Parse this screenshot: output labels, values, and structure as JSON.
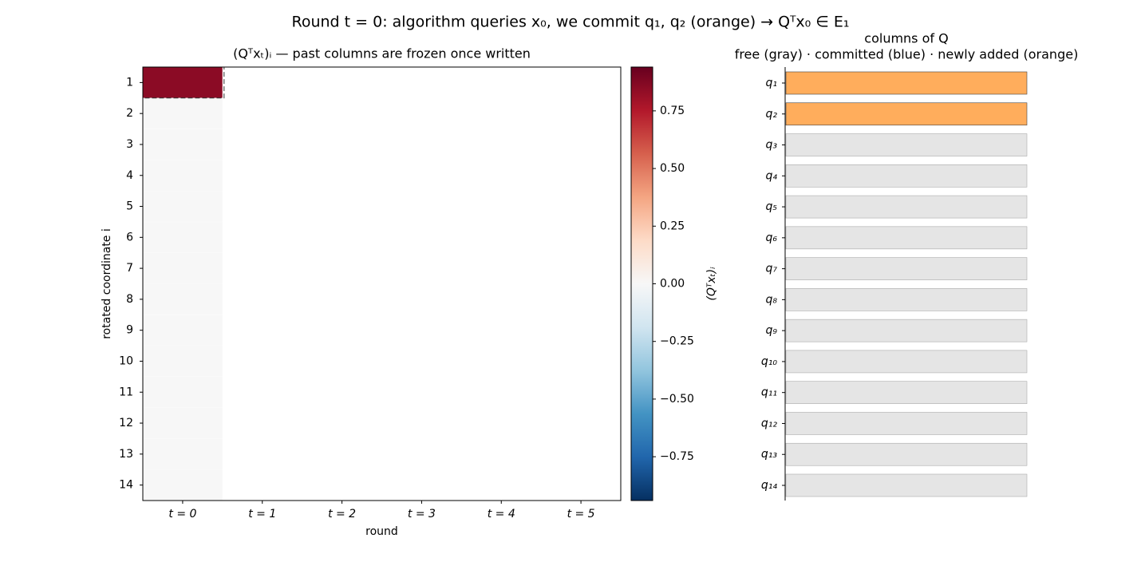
{
  "suptitle": "Round t = 0: algorithm queries x₀, we commit q₁, q₂ (orange) → Qᵀx₀ ∈ E₁",
  "chart_data": [
    {
      "type": "heatmap",
      "title": "(Qᵀxₜ)ᵢ  —  past columns are frozen once written",
      "xlabel": "round",
      "ylabel": "rotated coordinate i",
      "columns": [
        "t = 0",
        "t = 1",
        "t = 2",
        "t = 3",
        "t = 4",
        "t = 5"
      ],
      "rows": [
        1,
        2,
        3,
        4,
        5,
        6,
        7,
        8,
        9,
        10,
        11,
        12,
        13,
        14
      ],
      "values": [
        [
          0.85,
          null,
          null,
          null,
          null,
          null
        ],
        [
          0,
          null,
          null,
          null,
          null,
          null
        ],
        [
          0,
          null,
          null,
          null,
          null,
          null
        ],
        [
          0,
          null,
          null,
          null,
          null,
          null
        ],
        [
          0,
          null,
          null,
          null,
          null,
          null
        ],
        [
          0,
          null,
          null,
          null,
          null,
          null
        ],
        [
          0,
          null,
          null,
          null,
          null,
          null
        ],
        [
          0,
          null,
          null,
          null,
          null,
          null
        ],
        [
          0,
          null,
          null,
          null,
          null,
          null
        ],
        [
          0,
          null,
          null,
          null,
          null,
          null
        ],
        [
          0,
          null,
          null,
          null,
          null,
          null
        ],
        [
          0,
          null,
          null,
          null,
          null,
          null
        ],
        [
          0,
          null,
          null,
          null,
          null,
          null
        ],
        [
          0,
          null,
          null,
          null,
          null,
          null
        ]
      ],
      "colormap": "RdBu_r",
      "clim": [
        -0.94,
        0.94
      ],
      "cticks": [
        {
          "value": -0.75,
          "label": "−0.75"
        },
        {
          "value": -0.5,
          "label": "−0.50"
        },
        {
          "value": -0.25,
          "label": "−0.25"
        },
        {
          "value": 0,
          "label": "0.00"
        },
        {
          "value": 0.25,
          "label": "0.25"
        },
        {
          "value": 0.5,
          "label": "0.50"
        },
        {
          "value": 0.75,
          "label": "0.75"
        }
      ],
      "clabel": "(Qᵀxₜ)ᵢ"
    },
    {
      "type": "status-bars",
      "title": "columns of Q",
      "subtitle": "free (gray) · committed (blue) · newly added (orange)",
      "categories": [
        "q₁",
        "q₂",
        "q₃",
        "q₄",
        "q₅",
        "q₆",
        "q₇",
        "q₈",
        "q₉",
        "q₁₀",
        "q₁₁",
        "q₁₂",
        "q₁₃",
        "q₁₄"
      ],
      "status": [
        "newly added",
        "newly added",
        "free",
        "free",
        "free",
        "free",
        "free",
        "free",
        "free",
        "free",
        "free",
        "free",
        "free",
        "free"
      ],
      "status_colors": {
        "free": "#e5e5e5",
        "newly added": "#ffad5c"
      }
    }
  ]
}
